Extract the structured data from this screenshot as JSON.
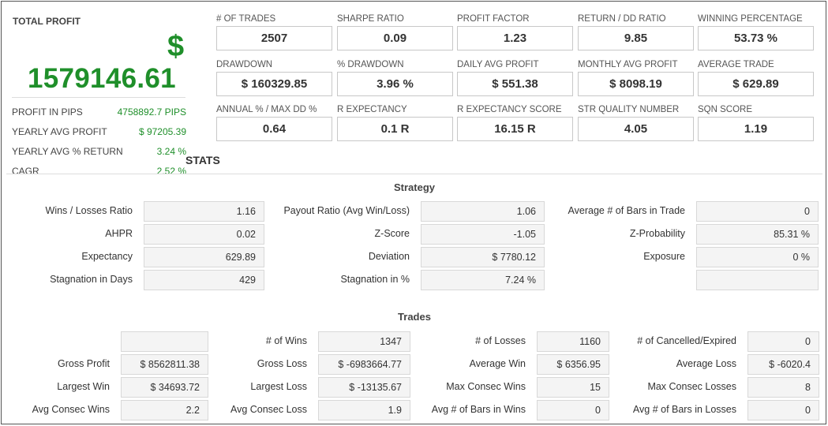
{
  "total": {
    "title": "TOTAL PROFIT",
    "dollar": "$",
    "value": "1579146.61",
    "rows": [
      {
        "label": "PROFIT IN PIPS",
        "value": "4758892.7 PIPS"
      },
      {
        "label": "YEARLY AVG PROFIT",
        "value": "$ 97205.39"
      },
      {
        "label": "YEARLY AVG % RETURN",
        "value": "3.24 %"
      },
      {
        "label": "CAGR",
        "value": "2.52 %"
      }
    ]
  },
  "metrics": [
    {
      "label": "# OF TRADES",
      "value": "2507"
    },
    {
      "label": "SHARPE RATIO",
      "value": "0.09"
    },
    {
      "label": "PROFIT FACTOR",
      "value": "1.23"
    },
    {
      "label": "RETURN / DD RATIO",
      "value": "9.85"
    },
    {
      "label": "WINNING PERCENTAGE",
      "value": "53.73 %"
    },
    {
      "label": "DRAWDOWN",
      "value": "$ 160329.85"
    },
    {
      "label": "% DRAWDOWN",
      "value": "3.96 %"
    },
    {
      "label": "DAILY AVG PROFIT",
      "value": "$ 551.38"
    },
    {
      "label": "MONTHLY AVG PROFIT",
      "value": "$ 8098.19"
    },
    {
      "label": "AVERAGE TRADE",
      "value": "$ 629.89"
    },
    {
      "label": "ANNUAL % / MAX DD %",
      "value": "0.64"
    },
    {
      "label": "R EXPECTANCY",
      "value": "0.1 R"
    },
    {
      "label": "R EXPECTANCY SCORE",
      "value": "16.15 R"
    },
    {
      "label": "STR QUALITY NUMBER",
      "value": "4.05"
    },
    {
      "label": "SQN SCORE",
      "value": "1.19"
    }
  ],
  "stats_heading": "STATS",
  "strategy": {
    "title": "Strategy",
    "col1": [
      {
        "label": "Wins / Losses Ratio",
        "value": "1.16"
      },
      {
        "label": "AHPR",
        "value": "0.02"
      },
      {
        "label": "Expectancy",
        "value": "629.89"
      },
      {
        "label": "Stagnation in Days",
        "value": "429"
      }
    ],
    "col2": [
      {
        "label": "Payout Ratio (Avg Win/Loss)",
        "value": "1.06"
      },
      {
        "label": "Z-Score",
        "value": "-1.05"
      },
      {
        "label": "Deviation",
        "value": "$ 7780.12"
      },
      {
        "label": "Stagnation in %",
        "value": "7.24 %"
      }
    ],
    "col3": [
      {
        "label": "Average # of Bars in Trade",
        "value": "0"
      },
      {
        "label": "Z-Probability",
        "value": "85.31 %"
      },
      {
        "label": "Exposure",
        "value": "0 %"
      },
      {
        "label": "",
        "value": ""
      }
    ]
  },
  "trades": {
    "title": "Trades",
    "col1": [
      {
        "label": "",
        "value": ""
      },
      {
        "label": "Gross Profit",
        "value": "$ 8562811.38"
      },
      {
        "label": "Largest Win",
        "value": "$ 34693.72"
      },
      {
        "label": "Avg Consec Wins",
        "value": "2.2"
      }
    ],
    "col2": [
      {
        "label": "# of Wins",
        "value": "1347"
      },
      {
        "label": "Gross Loss",
        "value": "$ -6983664.77"
      },
      {
        "label": "Largest Loss",
        "value": "$ -13135.67"
      },
      {
        "label": "Avg Consec Loss",
        "value": "1.9"
      }
    ],
    "col3": [
      {
        "label": "# of Losses",
        "value": "1160"
      },
      {
        "label": "Average Win",
        "value": "$ 6356.95"
      },
      {
        "label": "Max Consec Wins",
        "value": "15"
      },
      {
        "label": "Avg # of Bars in Wins",
        "value": "0"
      }
    ],
    "col4": [
      {
        "label": "# of Cancelled/Expired",
        "value": "0"
      },
      {
        "label": "Average Loss",
        "value": "$ -6020.4"
      },
      {
        "label": "Max Consec Losses",
        "value": "8"
      },
      {
        "label": "Avg # of Bars in Losses",
        "value": "0"
      }
    ]
  },
  "colors": {
    "profit_green": "#1f8f2a"
  }
}
